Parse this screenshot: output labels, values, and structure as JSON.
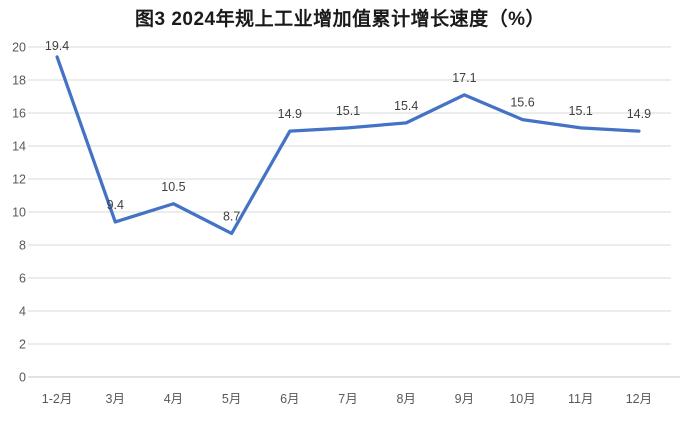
{
  "chart_data": {
    "type": "line",
    "title": "图3 2024年规上工业增加值累计增长速度（%）",
    "categories": [
      "1-2月",
      "3月",
      "4月",
      "5月",
      "6月",
      "7月",
      "8月",
      "9月",
      "10月",
      "11月",
      "12月"
    ],
    "values": [
      19.4,
      9.4,
      10.5,
      8.7,
      14.9,
      15.1,
      15.4,
      17.1,
      15.6,
      15.1,
      14.9
    ],
    "xlabel": "",
    "ylabel": "",
    "ylim": [
      0,
      20
    ],
    "ytick_step": 2,
    "grid": true,
    "legend": "none",
    "data_labels": true,
    "colors": {
      "line": "#4472C4",
      "gridline": "#D9D9D9",
      "axis_line": "#C6C6C6",
      "tick_label": "#595959",
      "data_label": "#404040",
      "title": "#1A1A1A",
      "background": "#FFFFFF"
    }
  }
}
